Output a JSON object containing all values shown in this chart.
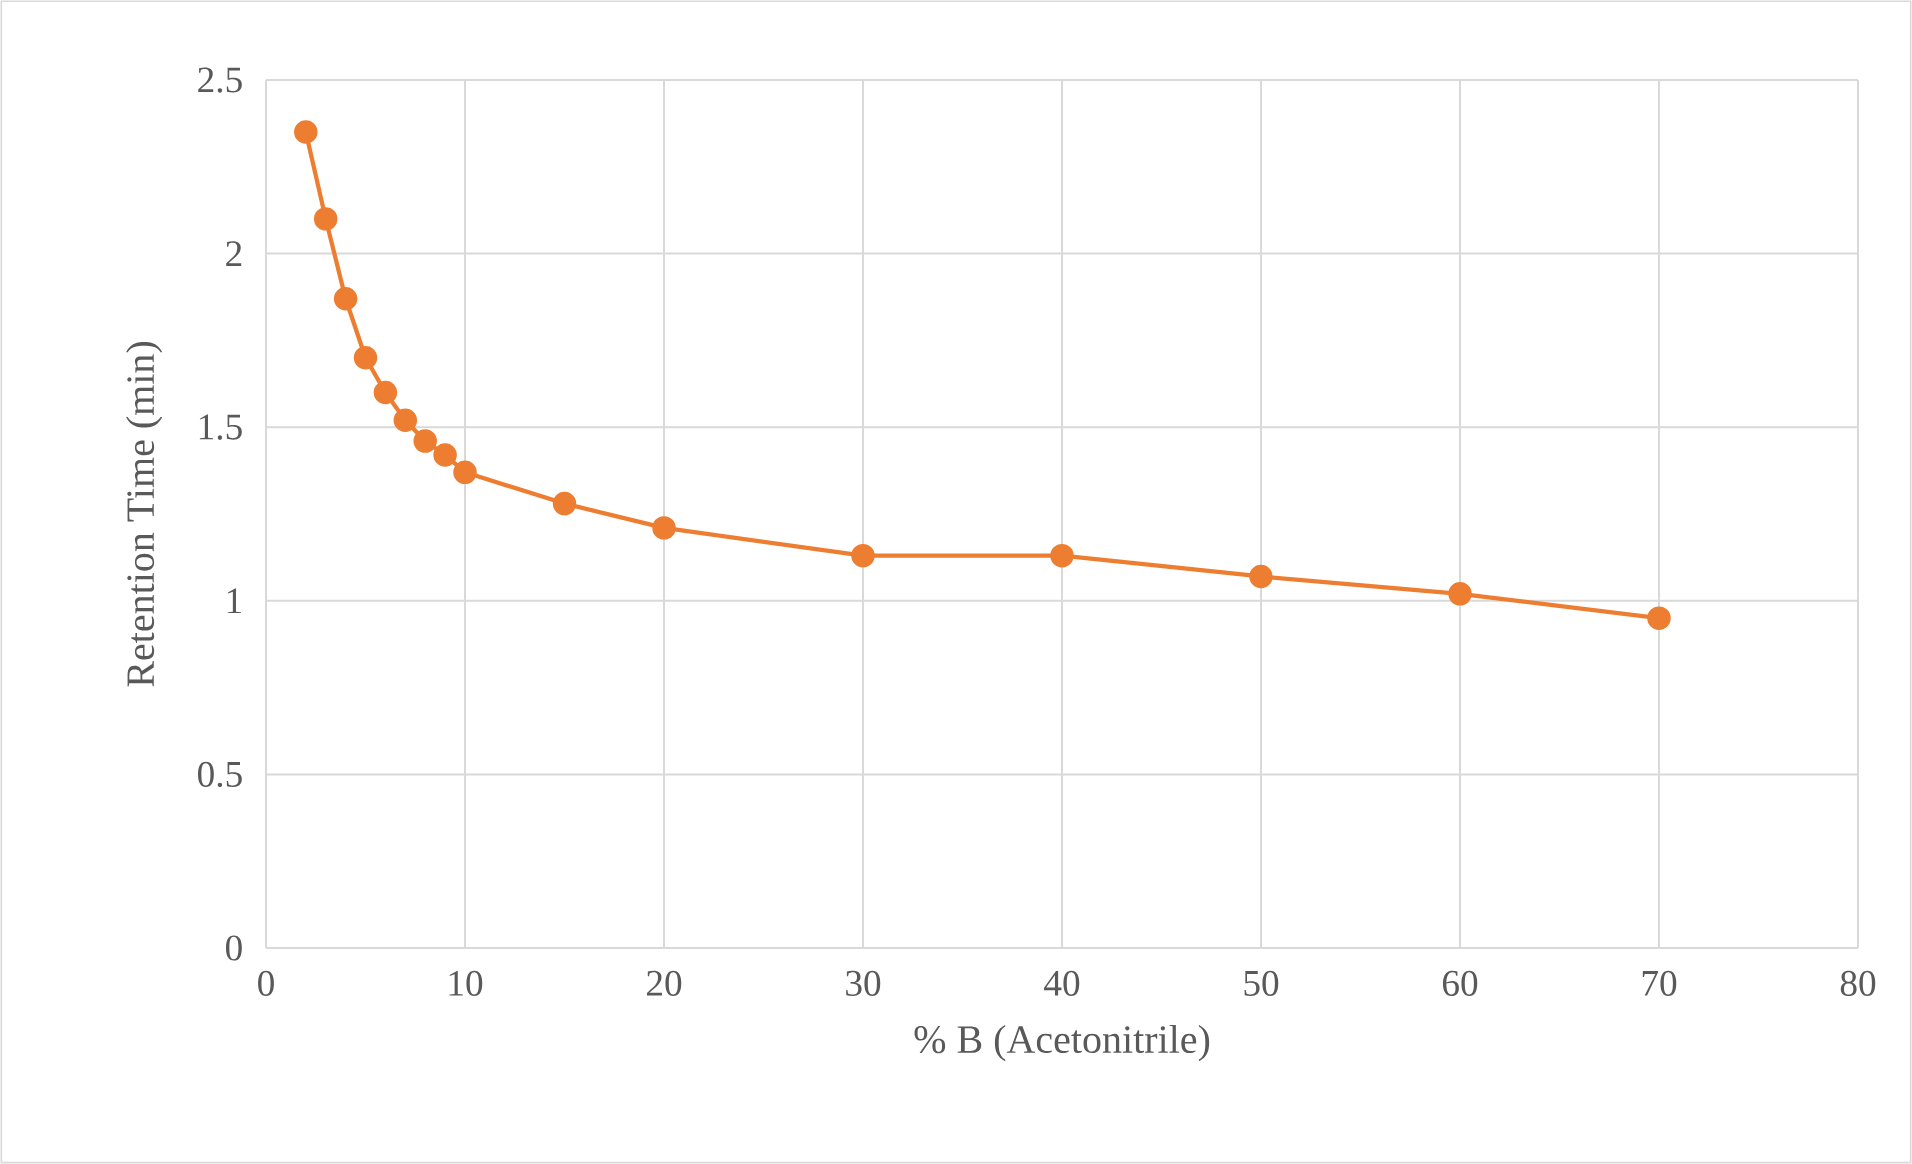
{
  "chart_data": {
    "type": "line",
    "xlabel": "% B (Acetonitrile)",
    "ylabel": "Retention Time (min)",
    "x": [
      2,
      3,
      4,
      5,
      6,
      7,
      8,
      9,
      10,
      15,
      20,
      30,
      40,
      50,
      60,
      70
    ],
    "series": [
      {
        "color": "#ed7d31",
        "values": [
          2.35,
          2.1,
          1.87,
          1.7,
          1.6,
          1.52,
          1.46,
          1.42,
          1.37,
          1.28,
          1.21,
          1.13,
          1.13,
          1.07,
          1.02,
          0.95
        ]
      }
    ],
    "xlim": [
      0,
      80
    ],
    "ylim": [
      0,
      2.5
    ],
    "xticks": [
      0,
      10,
      20,
      30,
      40,
      50,
      60,
      70,
      80
    ],
    "yticks": [
      0,
      0.5,
      1,
      1.5,
      2,
      2.5
    ],
    "grid": true,
    "marker": "circle",
    "line_style": "solid"
  }
}
